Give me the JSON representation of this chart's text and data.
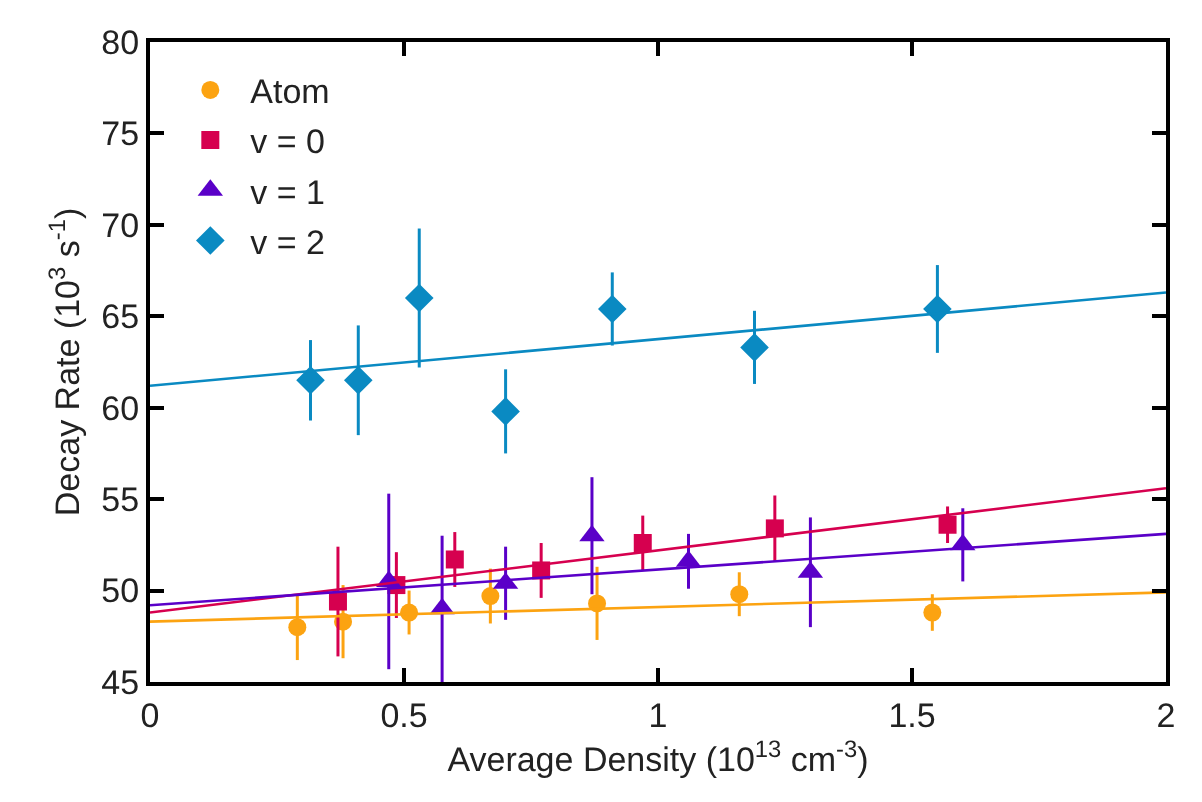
{
  "chart_data": {
    "type": "scatter",
    "xlabel": "Average Density (10$^{13}$ cm$^{-3}$)",
    "ylabel": "Decay Rate (10$^{3}$ s$^{-1}$)",
    "xlim": [
      0,
      2
    ],
    "xticks": [
      0,
      0.5,
      1,
      1.5,
      2
    ],
    "ylim": [
      45,
      80
    ],
    "yticks": [
      45,
      50,
      55,
      60,
      65,
      70,
      75,
      80
    ],
    "legend": "top left",
    "series": [
      {
        "name": "Atom",
        "color": "#fca311",
        "marker": "circle",
        "x": [
          0.29,
          0.38,
          0.51,
          0.67,
          0.88,
          1.16,
          1.54
        ],
        "values": [
          48.0,
          48.3,
          48.8,
          49.7,
          49.3,
          49.8,
          48.8
        ],
        "errors": [
          1.8,
          2,
          1.2,
          1.5,
          2,
          1.2,
          1
        ]
      },
      {
        "name": "v = 0",
        "color": "#d6004f",
        "marker": "square",
        "x": [
          0.37,
          0.485,
          0.6,
          0.77,
          0.97,
          1.23,
          1.57
        ],
        "values": [
          49.4,
          50.3,
          51.7,
          51.1,
          52.6,
          53.4,
          53.6
        ],
        "errors": [
          3,
          1.8,
          1.5,
          1.5,
          1.5,
          1.8,
          1
        ]
      },
      {
        "name": "v = 1",
        "color": "#5a00c8",
        "marker": "triangle",
        "x": [
          0.47,
          0.575,
          0.7,
          0.87,
          1.06,
          1.3,
          1.6
        ],
        "values": [
          50.5,
          49.0,
          50.4,
          53.0,
          51.6,
          51.0,
          52.5
        ],
        "errors": [
          4.8,
          4,
          2,
          3.2,
          1.5,
          3,
          2
        ]
      },
      {
        "name": "v = 2",
        "color": "#0a8ac2",
        "marker": "diamond",
        "x": [
          0.316,
          0.41,
          0.53,
          0.7,
          0.91,
          1.19,
          1.55
        ],
        "values": [
          61.5,
          61.5,
          66.0,
          59.8,
          65.4,
          63.3,
          65.4
        ],
        "errors": [
          2.2,
          3,
          3.8,
          2.3,
          2,
          2,
          2.4
        ]
      },
      {
        "type": "line",
        "color": "#fca311",
        "marker": "none",
        "x": [
          0,
          2
        ],
        "values": [
          48.3,
          49.9
        ]
      },
      {
        "type": "line",
        "color": "#d6004f",
        "marker": "none",
        "x": [
          0,
          2
        ],
        "values": [
          48.8,
          55.6
        ]
      },
      {
        "type": "line",
        "color": "#5a00c8",
        "marker": "none",
        "x": [
          0,
          2
        ],
        "values": [
          49.2,
          53.1
        ]
      },
      {
        "type": "line",
        "color": "#0a8ac2",
        "marker": "none",
        "x": [
          0,
          2
        ],
        "values": [
          61.2,
          66.3
        ]
      }
    ]
  }
}
